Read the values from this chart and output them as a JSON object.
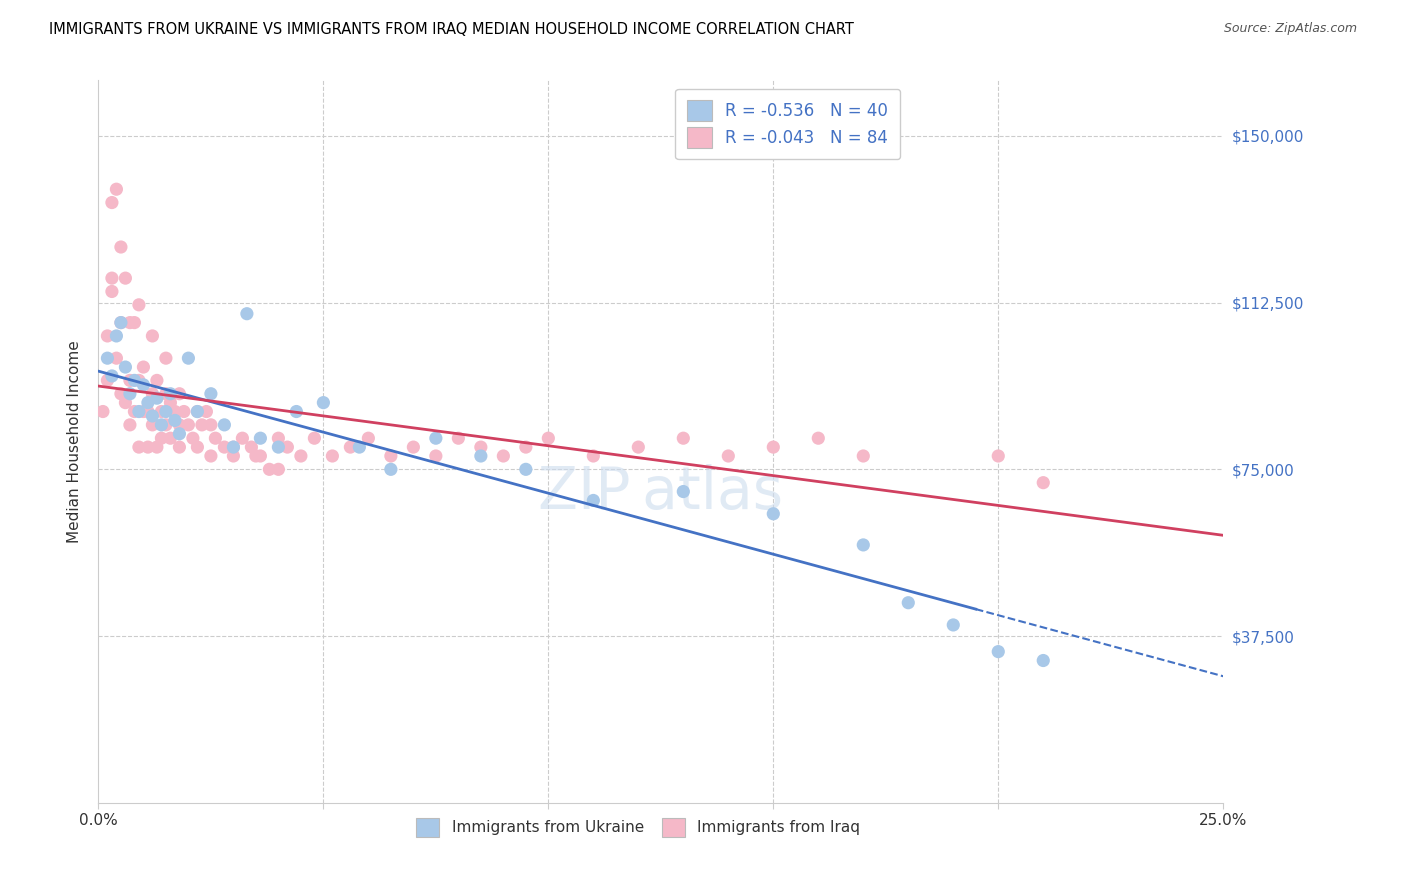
{
  "title": "IMMIGRANTS FROM UKRAINE VS IMMIGRANTS FROM IRAQ MEDIAN HOUSEHOLD INCOME CORRELATION CHART",
  "source": "Source: ZipAtlas.com",
  "ylabel": "Median Household Income",
  "xlim": [
    0.0,
    0.25
  ],
  "ylim": [
    0,
    162500
  ],
  "ytick_vals": [
    37500,
    75000,
    112500,
    150000
  ],
  "ukraine_color": "#a8c8e8",
  "iraq_color": "#f5b8c8",
  "ukraine_line_color": "#4472c4",
  "iraq_line_color": "#d04060",
  "ukraine_R": -0.536,
  "ukraine_N": 40,
  "iraq_R": -0.043,
  "iraq_N": 84,
  "ukraine_x": [
    0.002,
    0.003,
    0.004,
    0.005,
    0.006,
    0.007,
    0.008,
    0.009,
    0.01,
    0.011,
    0.012,
    0.013,
    0.014,
    0.015,
    0.016,
    0.017,
    0.018,
    0.02,
    0.022,
    0.025,
    0.028,
    0.03,
    0.033,
    0.036,
    0.04,
    0.044,
    0.05,
    0.058,
    0.065,
    0.075,
    0.085,
    0.095,
    0.11,
    0.13,
    0.15,
    0.17,
    0.18,
    0.19,
    0.2,
    0.21
  ],
  "ukraine_y": [
    100000,
    96000,
    105000,
    108000,
    98000,
    92000,
    95000,
    88000,
    94000,
    90000,
    87000,
    91000,
    85000,
    88000,
    92000,
    86000,
    83000,
    100000,
    88000,
    92000,
    85000,
    80000,
    110000,
    82000,
    80000,
    88000,
    90000,
    80000,
    75000,
    82000,
    78000,
    75000,
    68000,
    70000,
    65000,
    58000,
    45000,
    40000,
    34000,
    32000
  ],
  "iraq_x": [
    0.001,
    0.002,
    0.002,
    0.003,
    0.003,
    0.004,
    0.004,
    0.005,
    0.005,
    0.006,
    0.006,
    0.007,
    0.007,
    0.008,
    0.008,
    0.009,
    0.009,
    0.01,
    0.01,
    0.011,
    0.011,
    0.012,
    0.012,
    0.013,
    0.013,
    0.014,
    0.014,
    0.015,
    0.015,
    0.016,
    0.016,
    0.017,
    0.018,
    0.018,
    0.019,
    0.02,
    0.021,
    0.022,
    0.023,
    0.024,
    0.025,
    0.026,
    0.028,
    0.03,
    0.032,
    0.034,
    0.036,
    0.038,
    0.04,
    0.042,
    0.045,
    0.048,
    0.052,
    0.056,
    0.06,
    0.065,
    0.07,
    0.075,
    0.08,
    0.085,
    0.09,
    0.095,
    0.1,
    0.11,
    0.12,
    0.13,
    0.14,
    0.15,
    0.16,
    0.17,
    0.003,
    0.005,
    0.007,
    0.009,
    0.012,
    0.015,
    0.018,
    0.022,
    0.025,
    0.03,
    0.035,
    0.04,
    0.2,
    0.21
  ],
  "iraq_y": [
    88000,
    95000,
    105000,
    115000,
    135000,
    138000,
    100000,
    108000,
    92000,
    118000,
    90000,
    95000,
    85000,
    108000,
    88000,
    95000,
    80000,
    88000,
    98000,
    88000,
    80000,
    92000,
    85000,
    95000,
    80000,
    88000,
    82000,
    85000,
    92000,
    90000,
    82000,
    88000,
    85000,
    80000,
    88000,
    85000,
    82000,
    80000,
    85000,
    88000,
    78000,
    82000,
    80000,
    78000,
    82000,
    80000,
    78000,
    75000,
    82000,
    80000,
    78000,
    82000,
    78000,
    80000,
    82000,
    78000,
    80000,
    78000,
    82000,
    80000,
    78000,
    80000,
    82000,
    78000,
    80000,
    82000,
    78000,
    80000,
    82000,
    78000,
    118000,
    125000,
    108000,
    112000,
    105000,
    100000,
    92000,
    88000,
    85000,
    80000,
    78000,
    75000,
    78000,
    72000
  ]
}
